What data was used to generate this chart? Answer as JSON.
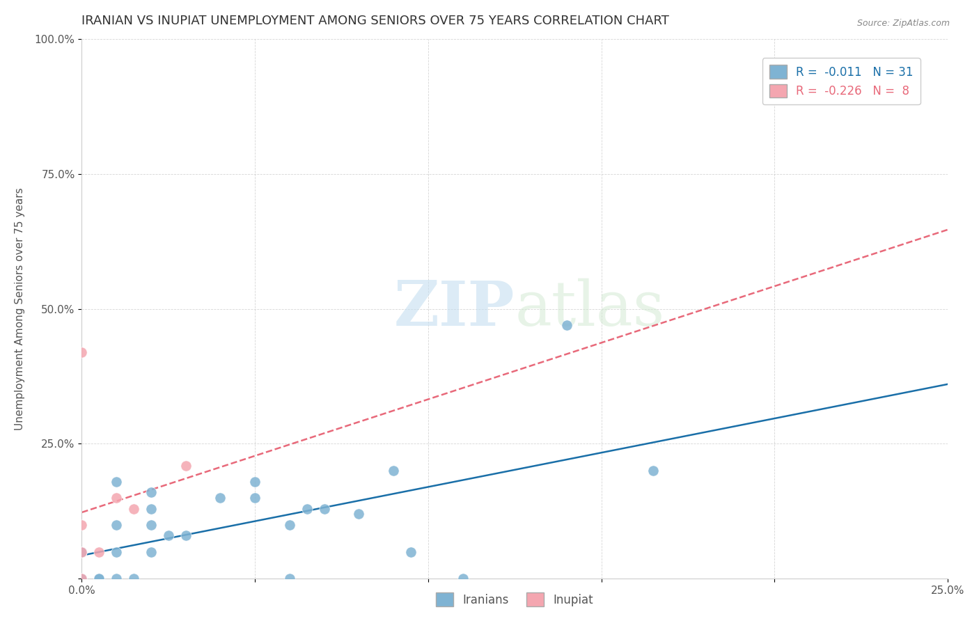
{
  "title": "IRANIAN VS INUPIAT UNEMPLOYMENT AMONG SENIORS OVER 75 YEARS CORRELATION CHART",
  "source_text": "Source: ZipAtlas.com",
  "ylabel": "Unemployment Among Seniors over 75 years",
  "xlabel": "",
  "xlim": [
    0.0,
    0.25
  ],
  "ylim": [
    0.0,
    1.0
  ],
  "iranian_color": "#7fb3d3",
  "inupiat_color": "#f4a6b0",
  "iranian_line_color": "#1a6fa8",
  "inupiat_line_color": "#e8697a",
  "iranian_R": -0.011,
  "iranian_N": 31,
  "inupiat_R": -0.226,
  "inupiat_N": 8,
  "legend_label_iranian": "Iranians",
  "legend_label_inupiat": "Inupiat",
  "watermark_zip": "ZIP",
  "watermark_atlas": "atlas",
  "iranian_scatter": [
    [
      0.0,
      0.0
    ],
    [
      0.0,
      0.0
    ],
    [
      0.0,
      0.05
    ],
    [
      0.0,
      0.05
    ],
    [
      0.0,
      0.05
    ],
    [
      0.005,
      0.0
    ],
    [
      0.005,
      0.0
    ],
    [
      0.01,
      0.0
    ],
    [
      0.01,
      0.05
    ],
    [
      0.01,
      0.1
    ],
    [
      0.01,
      0.18
    ],
    [
      0.015,
      0.0
    ],
    [
      0.02,
      0.05
    ],
    [
      0.02,
      0.1
    ],
    [
      0.02,
      0.13
    ],
    [
      0.02,
      0.16
    ],
    [
      0.025,
      0.08
    ],
    [
      0.03,
      0.08
    ],
    [
      0.04,
      0.15
    ],
    [
      0.05,
      0.15
    ],
    [
      0.05,
      0.18
    ],
    [
      0.06,
      0.0
    ],
    [
      0.06,
      0.1
    ],
    [
      0.065,
      0.13
    ],
    [
      0.07,
      0.13
    ],
    [
      0.08,
      0.12
    ],
    [
      0.09,
      0.2
    ],
    [
      0.095,
      0.05
    ],
    [
      0.11,
      0.0
    ],
    [
      0.14,
      0.47
    ],
    [
      0.165,
      0.2
    ]
  ],
  "inupiat_scatter": [
    [
      0.0,
      0.0
    ],
    [
      0.0,
      0.05
    ],
    [
      0.0,
      0.1
    ],
    [
      0.0,
      0.42
    ],
    [
      0.005,
      0.05
    ],
    [
      0.01,
      0.15
    ],
    [
      0.015,
      0.13
    ],
    [
      0.03,
      0.21
    ]
  ]
}
